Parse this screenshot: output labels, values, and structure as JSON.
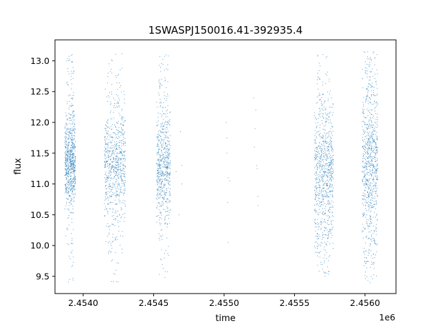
{
  "chart_data": {
    "type": "scatter",
    "title": "1SWASPJ150016.41-392935.4",
    "xlabel": "time",
    "ylabel": "flux",
    "x_offset_label": "1e6",
    "xlim": [
      2453800,
      2456220
    ],
    "ylim": [
      9.22,
      13.34
    ],
    "x_ticks": [
      2454000,
      2454500,
      2455000,
      2455500,
      2456000
    ],
    "x_tick_labels": [
      "2.4540",
      "2.4545",
      "2.4550",
      "2.4555",
      "2.4560"
    ],
    "y_ticks": [
      9.5,
      10.0,
      10.5,
      11.0,
      11.5,
      12.0,
      12.5,
      13.0
    ],
    "y_tick_labels": [
      "9.5",
      "10.0",
      "10.5",
      "11.0",
      "11.5",
      "12.0",
      "12.5",
      "13.0"
    ],
    "point_color": "#1f77b4",
    "grid": false,
    "legend": "none",
    "series": [
      {
        "clusters": [
          {
            "x_start": 2453870,
            "x_end": 2453945,
            "core_low": 10.8,
            "core_high": 11.95,
            "tail_low": 9.4,
            "tail_high": 13.15,
            "density": 1.0
          },
          {
            "x_start": 2454150,
            "x_end": 2454300,
            "core_low": 10.6,
            "core_high": 12.05,
            "tail_low": 9.4,
            "tail_high": 13.15,
            "density": 1.0
          },
          {
            "x_start": 2454520,
            "x_end": 2454620,
            "core_low": 10.55,
            "core_high": 12.0,
            "tail_low": 9.45,
            "tail_high": 13.1,
            "density": 0.85
          },
          {
            "x_start": 2455640,
            "x_end": 2455775,
            "core_low": 10.3,
            "core_high": 12.05,
            "tail_low": 9.5,
            "tail_high": 13.1,
            "density": 1.1
          },
          {
            "x_start": 2455980,
            "x_end": 2456090,
            "core_low": 10.3,
            "core_high": 12.4,
            "tail_low": 9.4,
            "tail_high": 13.15,
            "density": 1.1
          }
        ],
        "sparse_points": [
          [
            2454690,
            11.85
          ],
          [
            2454700,
            11.3
          ],
          [
            2454700,
            11.0
          ],
          [
            2454680,
            10.5
          ],
          [
            2454660,
            11.2
          ],
          [
            2455020,
            11.75
          ],
          [
            2455020,
            11.5
          ],
          [
            2455030,
            11.1
          ],
          [
            2455040,
            11.05
          ],
          [
            2455025,
            10.7
          ],
          [
            2455030,
            10.05
          ],
          [
            2455015,
            12.0
          ],
          [
            2455210,
            12.4
          ],
          [
            2455225,
            12.2
          ],
          [
            2455220,
            11.9
          ],
          [
            2455215,
            11.6
          ],
          [
            2455230,
            11.3
          ],
          [
            2455235,
            11.25
          ],
          [
            2455240,
            10.8
          ],
          [
            2455240,
            10.65
          ]
        ]
      }
    ]
  }
}
